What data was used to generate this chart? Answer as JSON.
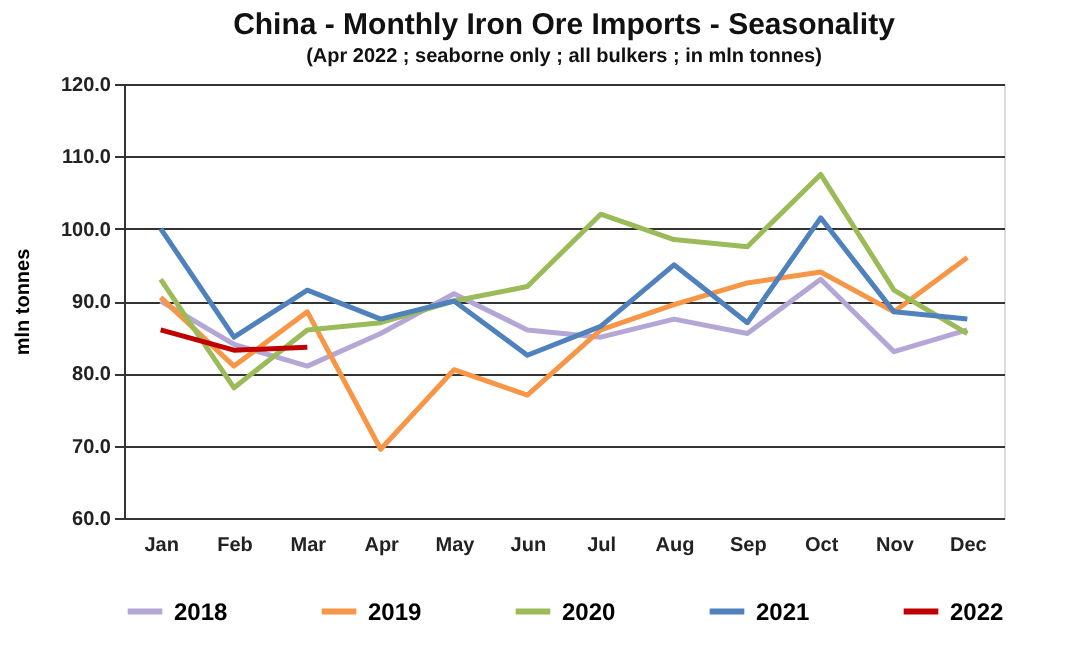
{
  "chart_data": {
    "type": "line",
    "title": "China - Monthly Iron Ore Imports - Seasonality",
    "subtitle": "(Apr 2022 ; seaborne only ; all bulkers ; in mln tonnes)",
    "ylabel": "mln tonnes",
    "categories": [
      "Jan",
      "Feb",
      "Mar",
      "Apr",
      "May",
      "Jun",
      "Jul",
      "Aug",
      "Sep",
      "Oct",
      "Nov",
      "Dec"
    ],
    "ylim": [
      60,
      120
    ],
    "yticks": [
      {
        "value": 60,
        "label": "60.0"
      },
      {
        "value": 70,
        "label": "70.0"
      },
      {
        "value": 80,
        "label": "80.0"
      },
      {
        "value": 90,
        "label": "90.0"
      },
      {
        "value": 100,
        "label": "100.0"
      },
      {
        "value": 110,
        "label": "110.0"
      },
      {
        "value": 120,
        "label": "120.0"
      }
    ],
    "grid": "y",
    "legend": "bottom",
    "marker": "none",
    "line_style": "solid",
    "series": [
      {
        "name": "2018",
        "color": "#b4a7d6",
        "values": [
          90,
          84,
          81,
          85.5,
          91,
          86,
          85,
          87.5,
          85.5,
          93,
          83,
          86
        ]
      },
      {
        "name": "2019",
        "color": "#f79646",
        "values": [
          90.5,
          81,
          88.5,
          69.5,
          80.5,
          77,
          86,
          89.5,
          92.5,
          94,
          88.5,
          96
        ]
      },
      {
        "name": "2020",
        "color": "#9bbb59",
        "values": [
          93,
          78,
          86,
          87,
          90,
          92,
          102,
          98.5,
          97.5,
          107.5,
          91.5,
          85.5
        ]
      },
      {
        "name": "2021",
        "color": "#4f81bd",
        "values": [
          100,
          85,
          91.5,
          87.5,
          90,
          82.5,
          86.5,
          95,
          87,
          101.5,
          88.5,
          87.5
        ]
      },
      {
        "name": "2022",
        "color": "#c00000",
        "values": [
          86,
          83.2,
          83.6,
          null,
          null,
          null,
          null,
          null,
          null,
          null,
          null,
          null
        ]
      }
    ]
  }
}
